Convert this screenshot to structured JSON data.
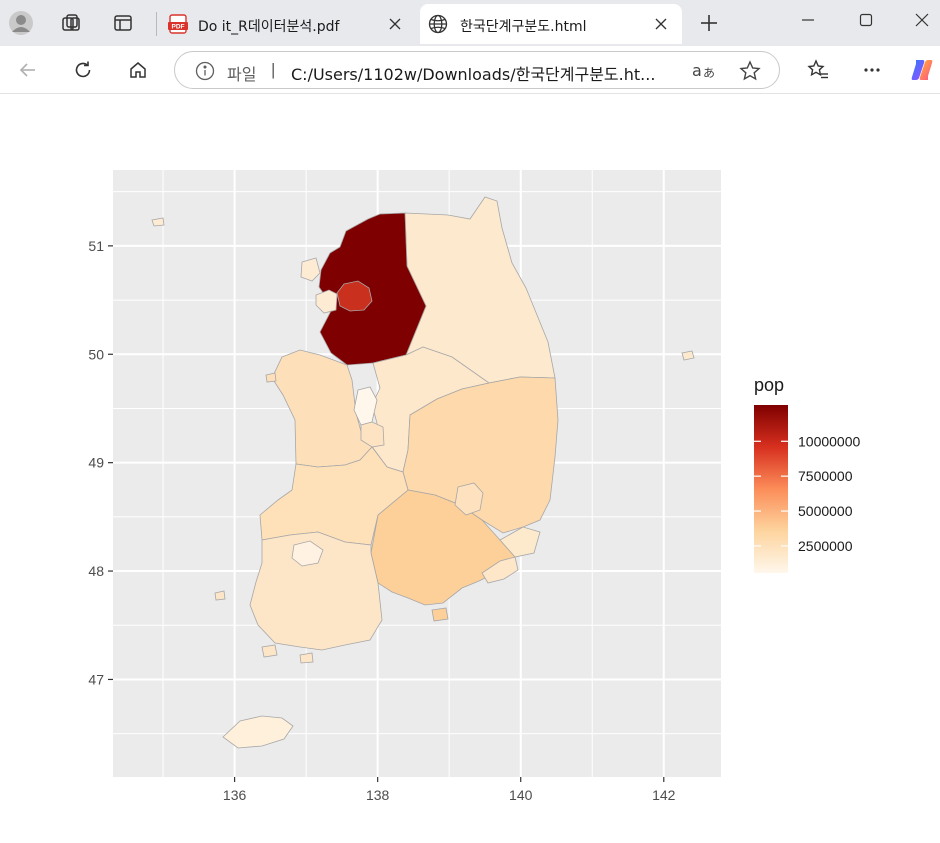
{
  "browser": {
    "tabs": [
      {
        "title": "Do it_R데이터분석.pdf",
        "icon": "pdf-icon",
        "active": false
      },
      {
        "title": "한국단계구분도.html",
        "icon": "globe-icon",
        "active": true
      }
    ],
    "address": {
      "scheme_label": "파일",
      "separator": "|",
      "url": "C:/Users/1102w/Downloads/한국단계구분도.ht..."
    },
    "colors": {
      "tabbar": "#e8e9ec",
      "active_tab": "#ffffff"
    }
  },
  "chart_data": {
    "type": "choropleth",
    "x_ticks": [
      136,
      138,
      140,
      142
    ],
    "y_ticks": [
      47,
      48,
      49,
      50,
      51
    ],
    "xlim": [
      134.3,
      142.8
    ],
    "ylim": [
      46.1,
      51.7
    ],
    "grid": true,
    "panel_background": "#ebebeb",
    "legend": {
      "title": "pop",
      "placement": "right",
      "breaks": [
        10000000,
        7500000,
        5000000,
        2500000
      ],
      "break_labels": [
        "10000000",
        "7500000",
        "5000000",
        "2500000"
      ],
      "range": [
        560000,
        12600000
      ],
      "colors": [
        "#fff7ec",
        "#fdd49e",
        "#fc8d59",
        "#d7301f",
        "#7f0000"
      ]
    },
    "regions": [
      {
        "value": 2800000,
        "color": "#fde9cd"
      },
      {
        "value": 12600000,
        "color": "#7f0000"
      },
      {
        "value": 9700000,
        "color": "#c9301d"
      },
      {
        "value": 1500000,
        "color": "#fdebd4"
      },
      {
        "value": 2100000,
        "color": "#fddfba"
      },
      {
        "value": 1600000,
        "color": "#fee8cc"
      },
      {
        "value": 560000,
        "color": "#fff7ec"
      },
      {
        "value": 1500000,
        "color": "#fee3c3"
      },
      {
        "value": 2900000,
        "color": "#fdd9ab"
      },
      {
        "value": 3300000,
        "color": "#fdcf99"
      },
      {
        "value": 2400000,
        "color": "#fee0b9"
      },
      {
        "value": 1800000,
        "color": "#fde5c7"
      },
      {
        "value": 1100000,
        "color": "#fff2e2"
      },
      {
        "value": 3400000,
        "color": "#fee2c0"
      },
      {
        "value": 2900000,
        "color": "#fee6c8"
      },
      {
        "value": 1400000,
        "color": "#fde9cc"
      },
      {
        "value": 660000,
        "color": "#fff0dc"
      }
    ]
  }
}
